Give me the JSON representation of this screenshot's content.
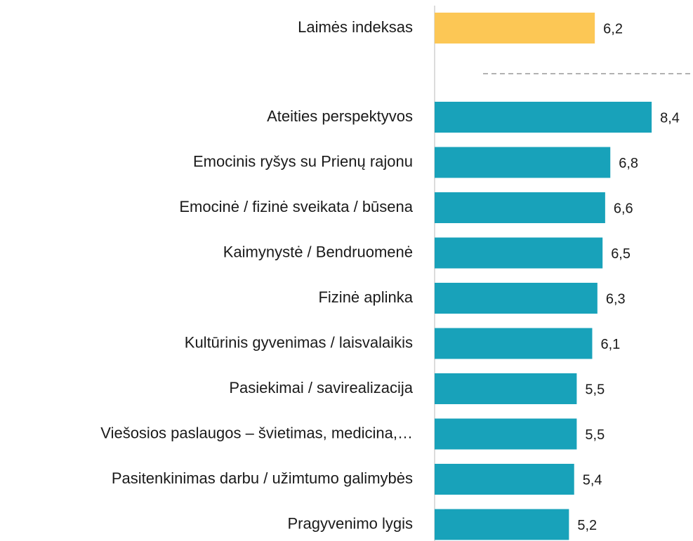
{
  "chart_data": {
    "type": "bar",
    "orientation": "horizontal",
    "categories": [
      "Laimės indeksas",
      "Ateities perspektyvos",
      "Emocinis ryšys su Prienų rajonu",
      "Emocinė / fizinė sveikata / būsena",
      "Kaimynystė / Bendruomenė",
      "Fizinė aplinka",
      "Kultūrinis gyvenimas / laisvalaikis",
      "Pasiekimai / savirealizacija",
      "Viešosios paslaugos – švietimas, medicina,…",
      "Pasitenkinimas darbu / užimtumo galimybės",
      "Pragyvenimo lygis"
    ],
    "values": [
      6.2,
      8.4,
      6.8,
      6.6,
      6.5,
      6.3,
      6.1,
      5.5,
      5.5,
      5.4,
      5.2
    ],
    "value_labels": [
      "6,2",
      "8,4",
      "6,8",
      "6,6",
      "6,5",
      "6,3",
      "6,1",
      "5,5",
      "5,5",
      "5,4",
      "5,2"
    ],
    "colors": [
      "#fcc755",
      "#18a2ba",
      "#18a2ba",
      "#18a2ba",
      "#18a2ba",
      "#18a2ba",
      "#18a2ba",
      "#18a2ba",
      "#18a2ba",
      "#18a2ba",
      "#18a2ba"
    ],
    "xlim": [
      0,
      10
    ]
  }
}
